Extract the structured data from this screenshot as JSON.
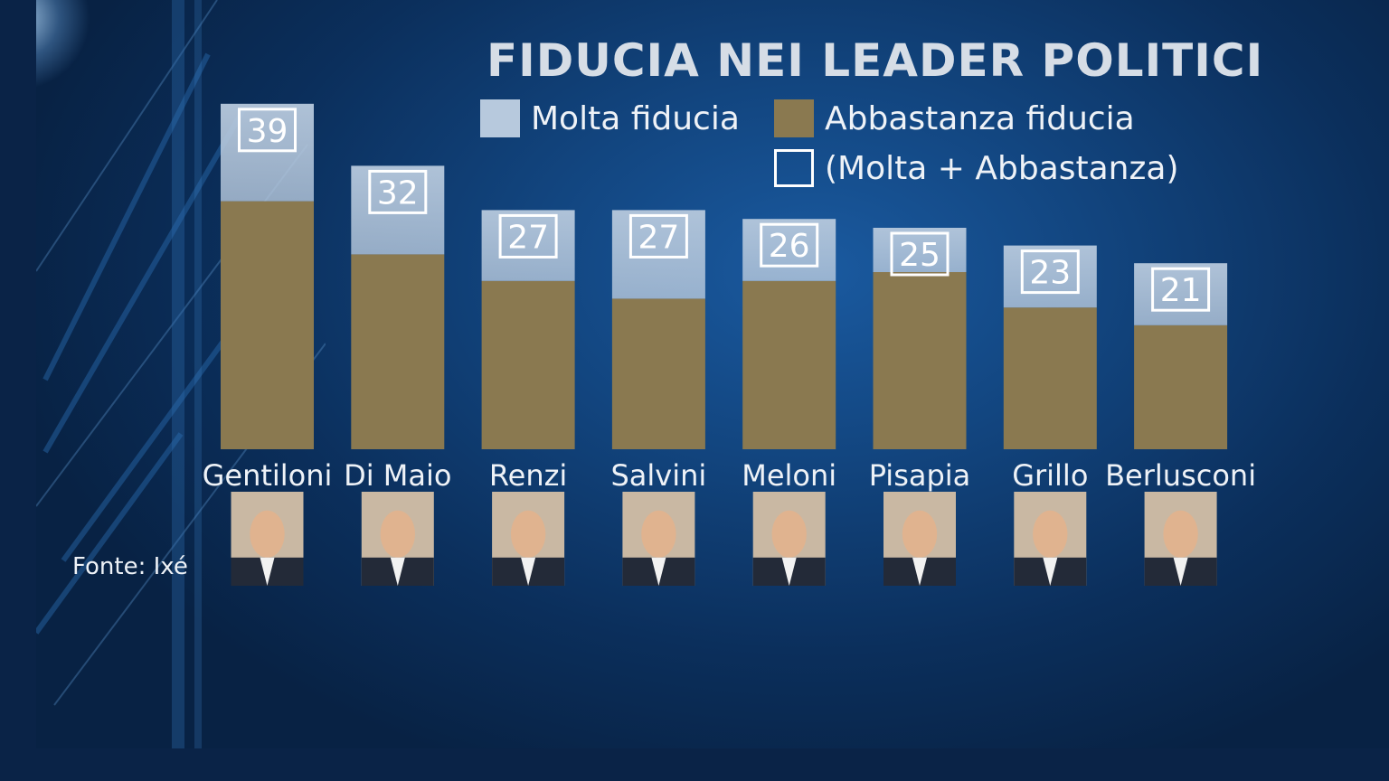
{
  "chart_data": {
    "type": "bar",
    "title": "FIDUCIA NEI LEADER POLITICI",
    "categories": [
      "Gentiloni",
      "Di Maio",
      "Renzi",
      "Salvini",
      "Meloni",
      "Pisapia",
      "Grillo",
      "Berlusconi"
    ],
    "series": [
      {
        "name": "Molta fiducia",
        "values": [
          11,
          10,
          8,
          10,
          7,
          5,
          7,
          7
        ]
      },
      {
        "name": "Abbastanza fiducia",
        "values": [
          28,
          22,
          19,
          17,
          19,
          20,
          16,
          14
        ]
      }
    ],
    "totals": [
      39,
      32,
      27,
      27,
      26,
      25,
      23,
      21
    ],
    "totals_label": "(Molta + Abbastanza)",
    "stacking": "stacked",
    "ylim": [
      0,
      40
    ],
    "grid": false,
    "legend": "top-right"
  },
  "colors": {
    "molta": "#b7c9dd",
    "abbastanza": "#8a7950",
    "text": "#eef2f7",
    "title": "#d6dde6"
  },
  "legend": {
    "molta_label": "Molta fiducia",
    "abbastanza_label": "Abbastanza fiducia",
    "total_label": "(Molta + Abbastanza)"
  },
  "source": "Fonte: Ixé",
  "photo_icon": "portrait-photo-icon"
}
